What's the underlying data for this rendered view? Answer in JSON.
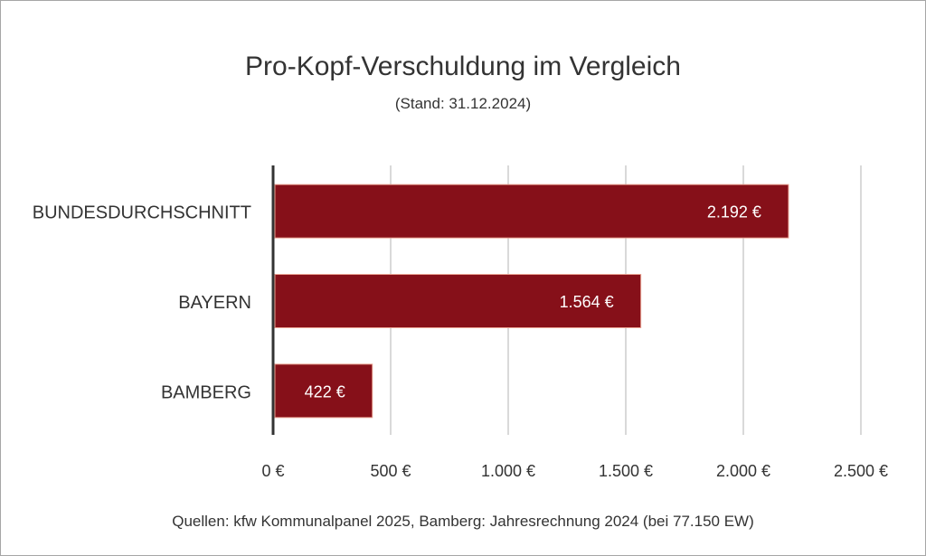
{
  "chart_data": {
    "type": "bar",
    "orientation": "horizontal",
    "title": "Pro-Kopf-Verschuldung im Vergleich",
    "subtitle": "(Stand: 31.12.2024)",
    "categories": [
      "BUNDESDURCHSCHNITT",
      "BAYERN",
      "BAMBERG"
    ],
    "values": [
      2192,
      1564,
      422
    ],
    "data_labels": [
      "2.192 €",
      "1.564 €",
      "422 €"
    ],
    "xlim": [
      0,
      2500
    ],
    "x_ticks": [
      0,
      500,
      1000,
      1500,
      2000,
      2500
    ],
    "x_tick_labels": [
      "0 €",
      "500 €",
      "1.000 €",
      "1.500 €",
      "2.000 €",
      "2.500 €"
    ],
    "grid": true,
    "bar_color": "#861019",
    "source": "Quellen: kfw Kommunalpanel 2025, Bamberg: Jahresrechnung 2024 (bei 77.150 EW)"
  }
}
